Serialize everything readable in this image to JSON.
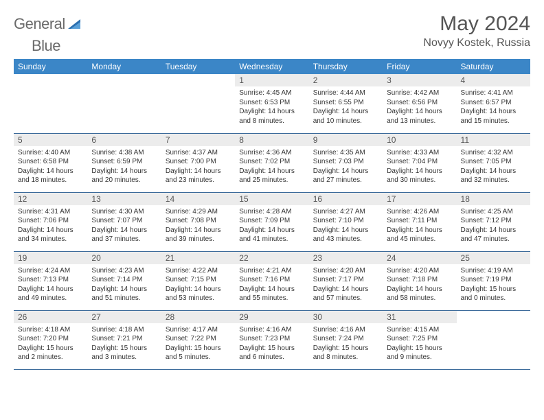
{
  "brand": {
    "text1": "General",
    "text2": "Blue",
    "logo_color": "#2b6fb0"
  },
  "title": "May 2024",
  "location": "Novyy Kostek, Russia",
  "header_bg": "#3b86c7",
  "daynum_bg": "#ececec",
  "border_color": "#3b6a9a",
  "weekdays": [
    "Sunday",
    "Monday",
    "Tuesday",
    "Wednesday",
    "Thursday",
    "Friday",
    "Saturday"
  ],
  "weeks": [
    [
      {
        "empty": true
      },
      {
        "empty": true
      },
      {
        "empty": true
      },
      {
        "day": "1",
        "sunrise": "4:45 AM",
        "sunset": "6:53 PM",
        "daylight": "14 hours and 8 minutes."
      },
      {
        "day": "2",
        "sunrise": "4:44 AM",
        "sunset": "6:55 PM",
        "daylight": "14 hours and 10 minutes."
      },
      {
        "day": "3",
        "sunrise": "4:42 AM",
        "sunset": "6:56 PM",
        "daylight": "14 hours and 13 minutes."
      },
      {
        "day": "4",
        "sunrise": "4:41 AM",
        "sunset": "6:57 PM",
        "daylight": "14 hours and 15 minutes."
      }
    ],
    [
      {
        "day": "5",
        "sunrise": "4:40 AM",
        "sunset": "6:58 PM",
        "daylight": "14 hours and 18 minutes."
      },
      {
        "day": "6",
        "sunrise": "4:38 AM",
        "sunset": "6:59 PM",
        "daylight": "14 hours and 20 minutes."
      },
      {
        "day": "7",
        "sunrise": "4:37 AM",
        "sunset": "7:00 PM",
        "daylight": "14 hours and 23 minutes."
      },
      {
        "day": "8",
        "sunrise": "4:36 AM",
        "sunset": "7:02 PM",
        "daylight": "14 hours and 25 minutes."
      },
      {
        "day": "9",
        "sunrise": "4:35 AM",
        "sunset": "7:03 PM",
        "daylight": "14 hours and 27 minutes."
      },
      {
        "day": "10",
        "sunrise": "4:33 AM",
        "sunset": "7:04 PM",
        "daylight": "14 hours and 30 minutes."
      },
      {
        "day": "11",
        "sunrise": "4:32 AM",
        "sunset": "7:05 PM",
        "daylight": "14 hours and 32 minutes."
      }
    ],
    [
      {
        "day": "12",
        "sunrise": "4:31 AM",
        "sunset": "7:06 PM",
        "daylight": "14 hours and 34 minutes."
      },
      {
        "day": "13",
        "sunrise": "4:30 AM",
        "sunset": "7:07 PM",
        "daylight": "14 hours and 37 minutes."
      },
      {
        "day": "14",
        "sunrise": "4:29 AM",
        "sunset": "7:08 PM",
        "daylight": "14 hours and 39 minutes."
      },
      {
        "day": "15",
        "sunrise": "4:28 AM",
        "sunset": "7:09 PM",
        "daylight": "14 hours and 41 minutes."
      },
      {
        "day": "16",
        "sunrise": "4:27 AM",
        "sunset": "7:10 PM",
        "daylight": "14 hours and 43 minutes."
      },
      {
        "day": "17",
        "sunrise": "4:26 AM",
        "sunset": "7:11 PM",
        "daylight": "14 hours and 45 minutes."
      },
      {
        "day": "18",
        "sunrise": "4:25 AM",
        "sunset": "7:12 PM",
        "daylight": "14 hours and 47 minutes."
      }
    ],
    [
      {
        "day": "19",
        "sunrise": "4:24 AM",
        "sunset": "7:13 PM",
        "daylight": "14 hours and 49 minutes."
      },
      {
        "day": "20",
        "sunrise": "4:23 AM",
        "sunset": "7:14 PM",
        "daylight": "14 hours and 51 minutes."
      },
      {
        "day": "21",
        "sunrise": "4:22 AM",
        "sunset": "7:15 PM",
        "daylight": "14 hours and 53 minutes."
      },
      {
        "day": "22",
        "sunrise": "4:21 AM",
        "sunset": "7:16 PM",
        "daylight": "14 hours and 55 minutes."
      },
      {
        "day": "23",
        "sunrise": "4:20 AM",
        "sunset": "7:17 PM",
        "daylight": "14 hours and 57 minutes."
      },
      {
        "day": "24",
        "sunrise": "4:20 AM",
        "sunset": "7:18 PM",
        "daylight": "14 hours and 58 minutes."
      },
      {
        "day": "25",
        "sunrise": "4:19 AM",
        "sunset": "7:19 PM",
        "daylight": "15 hours and 0 minutes."
      }
    ],
    [
      {
        "day": "26",
        "sunrise": "4:18 AM",
        "sunset": "7:20 PM",
        "daylight": "15 hours and 2 minutes."
      },
      {
        "day": "27",
        "sunrise": "4:18 AM",
        "sunset": "7:21 PM",
        "daylight": "15 hours and 3 minutes."
      },
      {
        "day": "28",
        "sunrise": "4:17 AM",
        "sunset": "7:22 PM",
        "daylight": "15 hours and 5 minutes."
      },
      {
        "day": "29",
        "sunrise": "4:16 AM",
        "sunset": "7:23 PM",
        "daylight": "15 hours and 6 minutes."
      },
      {
        "day": "30",
        "sunrise": "4:16 AM",
        "sunset": "7:24 PM",
        "daylight": "15 hours and 8 minutes."
      },
      {
        "day": "31",
        "sunrise": "4:15 AM",
        "sunset": "7:25 PM",
        "daylight": "15 hours and 9 minutes."
      },
      {
        "empty": true
      }
    ]
  ],
  "labels": {
    "sunrise": "Sunrise:",
    "sunset": "Sunset:",
    "daylight": "Daylight:"
  }
}
